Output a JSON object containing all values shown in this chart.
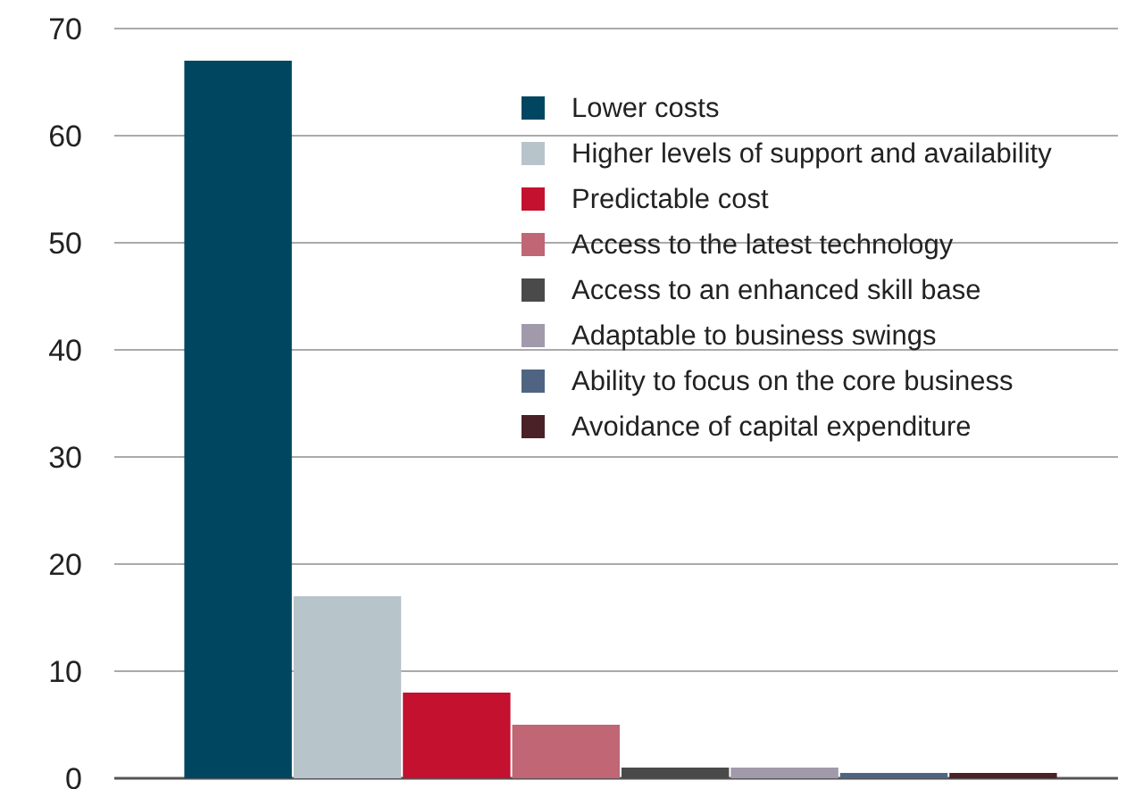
{
  "chart_data": {
    "type": "bar",
    "categories": [
      null
    ],
    "series": [
      {
        "name": "Lower costs",
        "color": "#004660",
        "values": [
          67
        ]
      },
      {
        "name": "Higher levels of support and availability",
        "color": "#b7c4ca",
        "values": [
          17
        ]
      },
      {
        "name": "Predictable cost",
        "color": "#c3112f",
        "values": [
          8
        ]
      },
      {
        "name": "Access to the latest technology",
        "color": "#c06674",
        "values": [
          5
        ]
      },
      {
        "name": "Access to an enhanced skill base",
        "color": "#4a4a4a",
        "values": [
          1
        ]
      },
      {
        "name": "Adaptable to business swings",
        "color": "#a09aab",
        "values": [
          1
        ]
      },
      {
        "name": "Ability to focus on the core business",
        "color": "#4f6482",
        "values": [
          0.5
        ]
      },
      {
        "name": "Avoidance of capital expenditure",
        "color": "#4a2126",
        "values": [
          0.5
        ]
      }
    ],
    "ylim": [
      0,
      70
    ],
    "yticks": [
      0,
      10,
      20,
      30,
      40,
      50,
      60,
      70
    ],
    "grid": "y",
    "legend": "top right"
  }
}
